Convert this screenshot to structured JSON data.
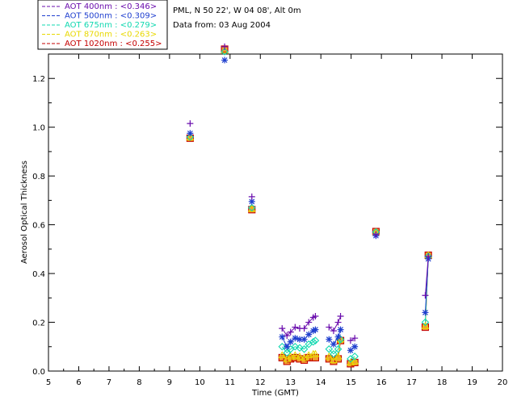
{
  "info": {
    "location": "PML, N 50 22', W 04 08', Alt 0m",
    "date_line": "Data from: 03 Aug 2004"
  },
  "chart_data": {
    "type": "scatter",
    "xlabel": "Time (GMT)",
    "ylabel": "Aerosol Optical Thickness",
    "xlim": [
      5,
      20
    ],
    "ylim": [
      0,
      1.3
    ],
    "xticks": [
      "5",
      "6",
      "7",
      "8",
      "9",
      "10",
      "11",
      "12",
      "13",
      "14",
      "15",
      "16",
      "17",
      "18",
      "19",
      "20"
    ],
    "yticks": [
      "0.0",
      "0.2",
      "0.4",
      "0.6",
      "0.8",
      "1.0",
      "1.2"
    ],
    "legend_position": "top-left, outside plot",
    "series": [
      {
        "name": "AOT  400nm : <0.346>",
        "color": "#6a0dad",
        "marker": "plus",
        "x": [
          9.68,
          10.82,
          11.72,
          12.72,
          12.88,
          13.0,
          13.15,
          13.3,
          13.45,
          13.6,
          13.75,
          13.82,
          14.27,
          14.42,
          14.57,
          14.65,
          14.98,
          15.12,
          15.82,
          17.45,
          17.55
        ],
        "y": [
          1.015,
          1.33,
          0.715,
          0.175,
          0.145,
          0.16,
          0.18,
          0.175,
          0.175,
          0.2,
          0.22,
          0.225,
          0.18,
          0.165,
          0.2,
          0.225,
          0.125,
          0.135,
          0.56,
          0.31,
          0.47
        ]
      },
      {
        "name": "AOT  500nm : <0.309>",
        "color": "#1f3fcf",
        "marker": "asterisk",
        "x": [
          9.68,
          10.82,
          11.72,
          12.72,
          12.88,
          13.0,
          13.15,
          13.3,
          13.45,
          13.6,
          13.75,
          13.82,
          14.27,
          14.42,
          14.57,
          14.65,
          14.98,
          15.12,
          15.82,
          17.45,
          17.55
        ],
        "y": [
          0.975,
          1.275,
          0.695,
          0.14,
          0.1,
          0.12,
          0.135,
          0.13,
          0.13,
          0.15,
          0.165,
          0.17,
          0.13,
          0.11,
          0.14,
          0.17,
          0.085,
          0.1,
          0.555,
          0.24,
          0.46
        ]
      },
      {
        "name": "AOT  675nm : <0.279>",
        "color": "#10d8b0",
        "marker": "diamond",
        "x": [
          9.68,
          10.82,
          11.72,
          12.72,
          12.88,
          13.0,
          13.15,
          13.3,
          13.45,
          13.6,
          13.75,
          13.82,
          14.27,
          14.42,
          14.57,
          14.65,
          14.98,
          15.12,
          15.82,
          17.45,
          17.55
        ],
        "y": [
          0.96,
          1.31,
          0.67,
          0.1,
          0.075,
          0.09,
          0.1,
          0.095,
          0.09,
          0.11,
          0.12,
          0.125,
          0.09,
          0.07,
          0.09,
          0.13,
          0.05,
          0.06,
          0.57,
          0.2,
          0.47
        ]
      },
      {
        "name": "AOT  870nm : <0.263>",
        "color": "#e8d800",
        "marker": "triangle",
        "x": [
          9.68,
          10.82,
          11.72,
          12.72,
          12.88,
          13.0,
          13.15,
          13.3,
          13.45,
          13.6,
          13.75,
          13.82,
          14.27,
          14.42,
          14.57,
          14.65,
          14.98,
          15.12,
          15.82,
          17.45,
          17.55
        ],
        "y": [
          0.958,
          1.315,
          0.665,
          0.065,
          0.05,
          0.06,
          0.065,
          0.06,
          0.055,
          0.065,
          0.07,
          0.07,
          0.06,
          0.045,
          0.06,
          0.13,
          0.035,
          0.04,
          0.57,
          0.185,
          0.475
        ]
      },
      {
        "name": "AOT 1020nm : <0.255>",
        "color": "#c40000",
        "marker": "square",
        "x": [
          9.68,
          10.82,
          11.72,
          12.72,
          12.88,
          13.0,
          13.15,
          13.3,
          13.45,
          13.6,
          13.75,
          13.82,
          14.27,
          14.42,
          14.57,
          14.65,
          14.98,
          15.12,
          15.82,
          17.45,
          17.55
        ],
        "y": [
          0.955,
          1.32,
          0.662,
          0.055,
          0.04,
          0.05,
          0.055,
          0.05,
          0.045,
          0.055,
          0.055,
          0.055,
          0.05,
          0.04,
          0.05,
          0.125,
          0.03,
          0.035,
          0.572,
          0.18,
          0.475
        ]
      }
    ]
  }
}
